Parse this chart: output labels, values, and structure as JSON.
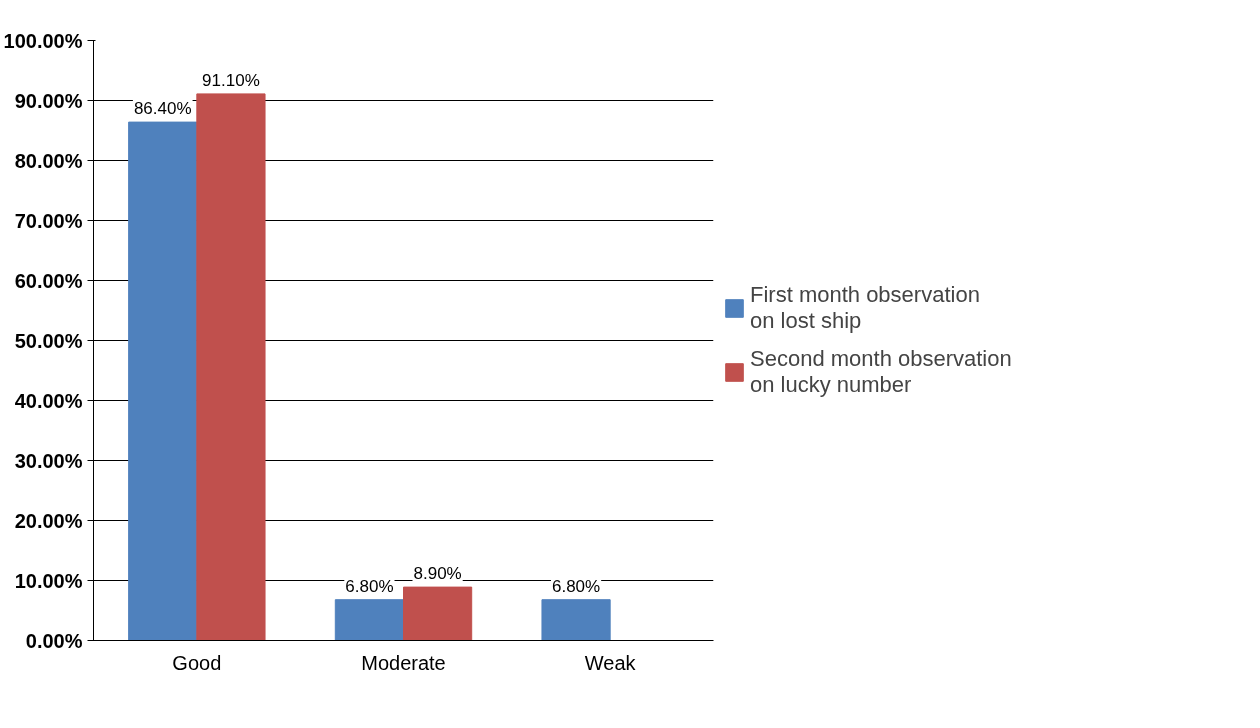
{
  "chart_data": {
    "type": "bar",
    "categories": [
      "Good",
      "Moderate",
      "Weak"
    ],
    "series": [
      {
        "name": "First month observation on lost ship",
        "color": "#4f81bd",
        "values": [
          86.4,
          6.8,
          6.8
        ],
        "value_labels": [
          "86.40%",
          "6.80%",
          "6.80%"
        ]
      },
      {
        "name": "Second month observation on lucky number",
        "color": "#c0504d",
        "values": [
          91.1,
          8.9,
          null
        ],
        "value_labels": [
          "91.10%",
          "8.90%",
          null
        ]
      }
    ],
    "ylim": [
      0,
      100
    ],
    "yticks": [
      {
        "value": 0,
        "label": "0.00%"
      },
      {
        "value": 10,
        "label": "10.00%"
      },
      {
        "value": 20,
        "label": "20.00%"
      },
      {
        "value": 30,
        "label": "30.00%"
      },
      {
        "value": 40,
        "label": "40.00%"
      },
      {
        "value": 50,
        "label": "50.00%"
      },
      {
        "value": 60,
        "label": "60.00%"
      },
      {
        "value": 70,
        "label": "70.00%"
      },
      {
        "value": 80,
        "label": "80.00%"
      },
      {
        "value": 90,
        "label": "90.00%"
      },
      {
        "value": 100,
        "label": "100.00%"
      }
    ],
    "grid": "y",
    "legend": "right"
  }
}
